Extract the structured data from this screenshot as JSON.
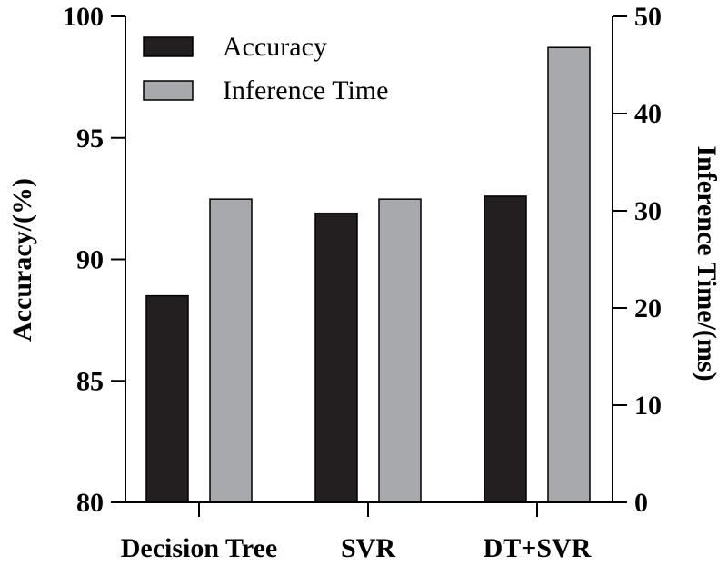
{
  "chart_data": {
    "type": "bar",
    "categories": [
      "Decision Tree",
      "SVR",
      "DT+SVR"
    ],
    "series": [
      {
        "name": "Accuracy",
        "axis": "left",
        "color": "#231f20",
        "values": [
          88.5,
          91.9,
          92.6
        ]
      },
      {
        "name": "Inference Time",
        "axis": "right",
        "color": "#a7a9ac",
        "values": [
          31.2,
          31.2,
          46.8
        ]
      }
    ],
    "y_left": {
      "label": "Accuracy/(%)",
      "lim": [
        80,
        100
      ],
      "ticks": [
        "80",
        "85",
        "90",
        "95",
        "100"
      ]
    },
    "y_right": {
      "label": "Inference Time/(ms)",
      "lim": [
        0,
        50
      ],
      "ticks": [
        "0",
        "10",
        "20",
        "30",
        "40",
        "50"
      ]
    },
    "legend": {
      "position": "top-left"
    },
    "grid": false
  }
}
